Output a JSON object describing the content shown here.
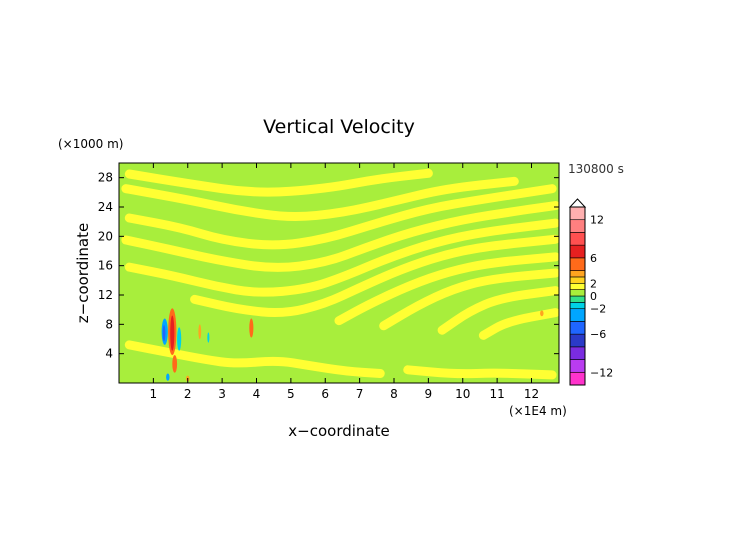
{
  "chart_data": {
    "type": "heatmap",
    "title": "Vertical Velocity",
    "xlabel": "x−coordinate",
    "ylabel": "z−coordinate",
    "x_unit": "(×1E4 m)",
    "y_unit": "(×1000 m)",
    "time_label": "130800 s",
    "xlim": [
      0,
      12.8
    ],
    "ylim": [
      0,
      30
    ],
    "x_ticks": [
      1,
      2,
      3,
      4,
      5,
      6,
      7,
      8,
      9,
      10,
      11,
      12
    ],
    "y_ticks": [
      4,
      8,
      12,
      16,
      20,
      24,
      28
    ],
    "x_tick_labels": [
      "1",
      "2",
      "3",
      "4",
      "5",
      "6",
      "7",
      "8",
      "9",
      "10",
      "11",
      "12"
    ],
    "y_tick_labels": [
      "4",
      "8",
      "12",
      "16",
      "20",
      "24",
      "28"
    ],
    "colorbar": {
      "range": [
        -14,
        14
      ],
      "tick_values": [
        12,
        6,
        2,
        0,
        -2,
        -6,
        -12
      ],
      "tick_labels": [
        "12",
        "6",
        "2",
        "0",
        "−2",
        "−6",
        "−12"
      ],
      "levels": [
        {
          "from": -14,
          "to": -12,
          "color": "#ff33cc"
        },
        {
          "from": -12,
          "to": -10,
          "color": "#b93cf0"
        },
        {
          "from": -10,
          "to": -8,
          "color": "#7a2ce0"
        },
        {
          "from": -8,
          "to": -6,
          "color": "#2a3ac8"
        },
        {
          "from": -6,
          "to": -4,
          "color": "#1f66ff"
        },
        {
          "from": -4,
          "to": -2,
          "color": "#00a6ff"
        },
        {
          "from": -2,
          "to": -1,
          "color": "#00d2e6"
        },
        {
          "from": -1,
          "to": 0,
          "color": "#33e08a"
        },
        {
          "from": 0,
          "to": 1,
          "color": "#a8ee3c"
        },
        {
          "from": 1,
          "to": 2,
          "color": "#ffff33"
        },
        {
          "from": 2,
          "to": 3,
          "color": "#ffd21f"
        },
        {
          "from": 3,
          "to": 4,
          "color": "#ffa41f"
        },
        {
          "from": 4,
          "to": 6,
          "color": "#ff6a1a"
        },
        {
          "from": 6,
          "to": 8,
          "color": "#e62020"
        },
        {
          "from": 8,
          "to": 10,
          "color": "#ff5050"
        },
        {
          "from": 10,
          "to": 12,
          "color": "#ff8080"
        },
        {
          "from": 12,
          "to": 14,
          "color": "#ffb0b0"
        }
      ]
    },
    "background_color": "#a8ee3c",
    "features": [
      {
        "kind": "band",
        "color": "#ffff33",
        "points": [
          [
            0.3,
            28.5
          ],
          [
            2,
            27.2
          ],
          [
            4,
            25.8
          ],
          [
            6,
            26.5
          ],
          [
            7.5,
            27.8
          ],
          [
            9,
            28.6
          ]
        ]
      },
      {
        "kind": "band",
        "color": "#ffff33",
        "points": [
          [
            0.2,
            26.5
          ],
          [
            2,
            25
          ],
          [
            3.5,
            23.5
          ],
          [
            5,
            22.5
          ],
          [
            6.5,
            23.2
          ],
          [
            8,
            24.8
          ],
          [
            9.5,
            26.5
          ],
          [
            11.5,
            27.5
          ]
        ]
      },
      {
        "kind": "band",
        "color": "#ffff33",
        "points": [
          [
            0.3,
            22.5
          ],
          [
            1.8,
            21.2
          ],
          [
            3,
            19.5
          ],
          [
            4.5,
            18.6
          ],
          [
            6,
            19.6
          ],
          [
            7.5,
            21.8
          ],
          [
            9,
            23.8
          ],
          [
            10.5,
            25
          ],
          [
            12.6,
            26.5
          ]
        ]
      },
      {
        "kind": "band",
        "color": "#ffff33",
        "points": [
          [
            0.2,
            19.5
          ],
          [
            1.5,
            18.2
          ],
          [
            2.8,
            16.8
          ],
          [
            4.5,
            15.5
          ],
          [
            6,
            16.4
          ],
          [
            7.2,
            18.5
          ],
          [
            8.5,
            20.6
          ],
          [
            10,
            22.3
          ],
          [
            11.5,
            23.4
          ],
          [
            12.7,
            24.2
          ]
        ]
      },
      {
        "kind": "band",
        "color": "#ffff33",
        "points": [
          [
            0.3,
            15.8
          ],
          [
            1.6,
            14.6
          ],
          [
            2.8,
            13.2
          ],
          [
            4,
            12.2
          ],
          [
            5.5,
            12.8
          ],
          [
            6.6,
            14.6
          ],
          [
            7.8,
            17
          ],
          [
            9.2,
            19.2
          ],
          [
            10.6,
            20.6
          ],
          [
            12.7,
            21.8
          ]
        ]
      },
      {
        "kind": "band",
        "color": "#ffff33",
        "points": [
          [
            2.2,
            11.4
          ],
          [
            3.5,
            10
          ],
          [
            4.8,
            9.4
          ],
          [
            6,
            10.8
          ],
          [
            7,
            13
          ],
          [
            8.2,
            15.5
          ],
          [
            9.4,
            17.4
          ],
          [
            10.6,
            18.6
          ],
          [
            12.7,
            19.6
          ]
        ]
      },
      {
        "kind": "band",
        "color": "#ffff33",
        "points": [
          [
            6.4,
            8.5
          ],
          [
            7.3,
            10.8
          ],
          [
            8.5,
            13.4
          ],
          [
            9.6,
            15.2
          ],
          [
            10.8,
            16.4
          ],
          [
            12.7,
            17.2
          ]
        ]
      },
      {
        "kind": "band",
        "color": "#ffff33",
        "points": [
          [
            7.7,
            7.8
          ],
          [
            8.7,
            10.6
          ],
          [
            9.7,
            12.8
          ],
          [
            10.8,
            14.2
          ],
          [
            12.7,
            15
          ]
        ]
      },
      {
        "kind": "band",
        "color": "#ffff33",
        "points": [
          [
            9.4,
            7.2
          ],
          [
            10.2,
            9.8
          ],
          [
            11.1,
            11.6
          ],
          [
            12.7,
            12.6
          ]
        ]
      },
      {
        "kind": "band",
        "color": "#ffff33",
        "points": [
          [
            10.6,
            6.5
          ],
          [
            11.3,
            8.4
          ],
          [
            12.7,
            9.6
          ]
        ]
      },
      {
        "kind": "band",
        "color": "#ffff33",
        "points": [
          [
            0.3,
            5.2
          ],
          [
            1.4,
            4.2
          ],
          [
            2.5,
            3.2
          ],
          [
            3.4,
            2.6
          ],
          [
            4.6,
            3.1
          ],
          [
            5.5,
            2.4
          ],
          [
            6.6,
            1.6
          ],
          [
            7.6,
            1.3
          ]
        ]
      },
      {
        "kind": "band",
        "color": "#ffff33",
        "points": [
          [
            8.4,
            1.8
          ],
          [
            9.8,
            1.2
          ],
          [
            11,
            1.4
          ],
          [
            12.6,
            1.1
          ]
        ]
      },
      {
        "kind": "blob",
        "color": "#ff6a1a",
        "cx": 1.55,
        "cy": 7.0,
        "rx": 0.12,
        "ry": 3.2
      },
      {
        "kind": "blob",
        "color": "#e62020",
        "cx": 1.55,
        "cy": 6.8,
        "rx": 0.06,
        "ry": 2.4
      },
      {
        "kind": "blob",
        "color": "#ff6a1a",
        "cx": 1.62,
        "cy": 2.6,
        "rx": 0.07,
        "ry": 1.2
      },
      {
        "kind": "blob",
        "color": "#00a6ff",
        "cx": 1.33,
        "cy": 7.0,
        "rx": 0.09,
        "ry": 1.8
      },
      {
        "kind": "blob",
        "color": "#1f66ff",
        "cx": 1.31,
        "cy": 6.8,
        "rx": 0.04,
        "ry": 1.1
      },
      {
        "kind": "blob",
        "color": "#00d2e6",
        "cx": 1.75,
        "cy": 6.0,
        "rx": 0.06,
        "ry": 1.6
      },
      {
        "kind": "blob",
        "color": "#00a6ff",
        "cx": 1.42,
        "cy": 0.8,
        "rx": 0.05,
        "ry": 0.5
      },
      {
        "kind": "blob",
        "color": "#ff6a1a",
        "cx": 3.85,
        "cy": 7.5,
        "rx": 0.06,
        "ry": 1.3
      },
      {
        "kind": "blob",
        "color": "#ffa41f",
        "cx": 2.35,
        "cy": 7.0,
        "rx": 0.04,
        "ry": 1.0
      },
      {
        "kind": "blob",
        "color": "#00d2e6",
        "cx": 2.6,
        "cy": 6.2,
        "rx": 0.03,
        "ry": 0.7
      },
      {
        "kind": "blob",
        "color": "#ffa41f",
        "cx": 2.0,
        "cy": 0.6,
        "rx": 0.05,
        "ry": 0.4
      },
      {
        "kind": "blob",
        "color": "#ffa41f",
        "cx": 12.3,
        "cy": 9.5,
        "rx": 0.05,
        "ry": 0.4
      }
    ]
  }
}
